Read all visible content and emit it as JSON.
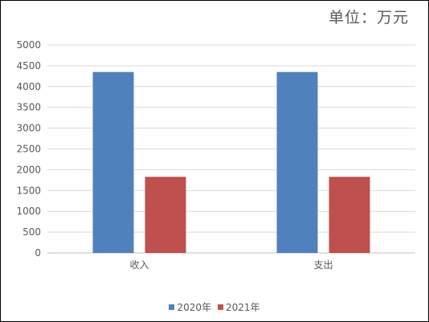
{
  "unit_label": "单位：万元",
  "chart_data": {
    "type": "bar",
    "categories": [
      "收入",
      "支出"
    ],
    "series": [
      {
        "name": "2020年",
        "values": [
          4350,
          4350
        ],
        "color": "#4F81BD"
      },
      {
        "name": "2021年",
        "values": [
          1830,
          1830
        ],
        "color": "#C0504D"
      }
    ],
    "ylim": [
      0,
      5000
    ],
    "yticks": [
      "0",
      "500",
      "1000",
      "1500",
      "2000",
      "2500",
      "3000",
      "3500",
      "4000",
      "4500",
      "5000"
    ],
    "grid": true,
    "legend_position": "bottom"
  }
}
